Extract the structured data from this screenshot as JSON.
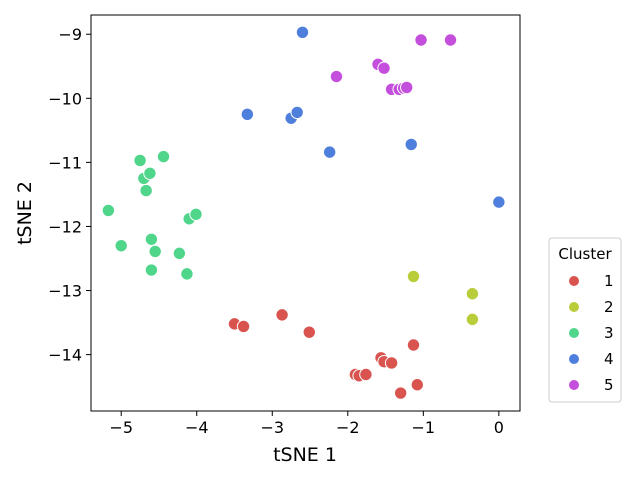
{
  "chart_data": {
    "type": "scatter",
    "xlabel": "tSNE 1",
    "ylabel": "tSNE 2",
    "xlim": [
      -5.4,
      0.28
    ],
    "ylim": [
      -14.88,
      -8.7
    ],
    "xticks": [
      -5,
      -4,
      -3,
      -2,
      -1,
      0
    ],
    "yticks": [
      -14,
      -13,
      -12,
      -11,
      -10,
      -9
    ],
    "grid": false,
    "legend": {
      "title": "Cluster",
      "placement": "right",
      "entries": [
        {
          "label": "1",
          "color": "#d9534f"
        },
        {
          "label": "2",
          "color": "#b9cc3a"
        },
        {
          "label": "3",
          "color": "#4fd68a"
        },
        {
          "label": "4",
          "color": "#4f7fdc"
        },
        {
          "label": "5",
          "color": "#c44fdc"
        }
      ]
    },
    "series": [
      {
        "name": "1",
        "color": "#d9534f",
        "points": [
          [
            -3.5,
            -13.52
          ],
          [
            -3.38,
            -13.56
          ],
          [
            -2.87,
            -13.38
          ],
          [
            -2.51,
            -13.65
          ],
          [
            -1.9,
            -14.31
          ],
          [
            -1.85,
            -14.33
          ],
          [
            -1.76,
            -14.31
          ],
          [
            -1.56,
            -14.05
          ],
          [
            -1.52,
            -14.11
          ],
          [
            -1.42,
            -14.13
          ],
          [
            -1.3,
            -14.6
          ],
          [
            -1.13,
            -13.85
          ],
          [
            -1.08,
            -14.47
          ]
        ]
      },
      {
        "name": "2",
        "color": "#b9cc3a",
        "points": [
          [
            -1.13,
            -12.78
          ],
          [
            -0.36,
            -13.06
          ],
          [
            -0.35,
            -13.05
          ],
          [
            -0.35,
            -13.45
          ]
        ]
      },
      {
        "name": "3",
        "color": "#4fd68a",
        "points": [
          [
            -5.17,
            -11.75
          ],
          [
            -5.0,
            -12.3
          ],
          [
            -4.75,
            -10.97
          ],
          [
            -4.7,
            -11.25
          ],
          [
            -4.67,
            -11.44
          ],
          [
            -4.62,
            -11.17
          ],
          [
            -4.6,
            -12.2
          ],
          [
            -4.6,
            -12.68
          ],
          [
            -4.55,
            -12.39
          ],
          [
            -4.44,
            -10.91
          ],
          [
            -4.23,
            -12.42
          ],
          [
            -4.13,
            -12.74
          ],
          [
            -4.1,
            -11.88
          ],
          [
            -4.01,
            -11.81
          ]
        ]
      },
      {
        "name": "4",
        "color": "#4f7fdc",
        "points": [
          [
            -3.33,
            -10.25
          ],
          [
            -2.75,
            -10.31
          ],
          [
            -2.67,
            -10.22
          ],
          [
            -2.6,
            -8.97
          ],
          [
            -2.24,
            -10.84
          ],
          [
            -1.16,
            -10.72
          ],
          [
            0.0,
            -11.62
          ]
        ]
      },
      {
        "name": "5",
        "color": "#c44fdc",
        "points": [
          [
            -2.15,
            -9.66
          ],
          [
            -1.6,
            -9.47
          ],
          [
            -1.52,
            -9.53
          ],
          [
            -1.42,
            -9.86
          ],
          [
            -1.32,
            -9.86
          ],
          [
            -1.26,
            -9.84
          ],
          [
            -1.22,
            -9.83
          ],
          [
            -1.03,
            -9.09
          ],
          [
            -0.64,
            -9.09
          ]
        ]
      }
    ]
  }
}
